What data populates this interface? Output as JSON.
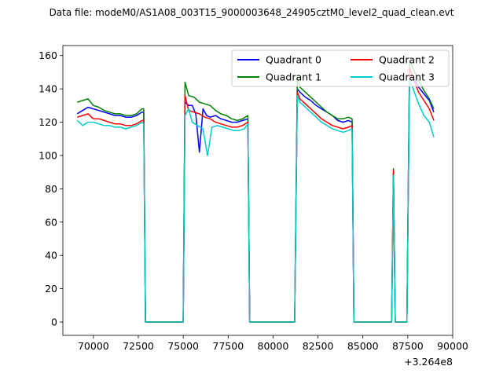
{
  "chart_data": {
    "type": "line",
    "title": "Data file: modeM0/AS1A08_003T15_9000003648_24905cztM0_level2_quad_clean.evt",
    "xlabel": "",
    "ylabel": "",
    "x_offset_label": "+3.264e8",
    "xlim": [
      68300,
      90000
    ],
    "ylim": [
      -8,
      166
    ],
    "xticks": [
      70000,
      72500,
      75000,
      77500,
      80000,
      82500,
      85000,
      87500,
      90000
    ],
    "xtick_labels": [
      "70000",
      "72500",
      "75000",
      "77500",
      "80000",
      "82500",
      "85000",
      "87500",
      "90000"
    ],
    "yticks": [
      0,
      20,
      40,
      60,
      80,
      100,
      120,
      140,
      160
    ],
    "ytick_labels": [
      "0",
      "20",
      "40",
      "60",
      "80",
      "100",
      "120",
      "140",
      "160"
    ],
    "grid": false,
    "legend": {
      "placement": "top-right",
      "columns": 2
    },
    "series": [
      {
        "name": "Quadrant 0",
        "color": "#0000ff",
        "points": [
          [
            69100,
            125
          ],
          [
            69400,
            127
          ],
          [
            69700,
            129
          ],
          [
            70000,
            128
          ],
          [
            70300,
            127
          ],
          [
            70600,
            126
          ],
          [
            70900,
            125
          ],
          [
            71200,
            124
          ],
          [
            71500,
            124
          ],
          [
            71800,
            123
          ],
          [
            72100,
            123
          ],
          [
            72400,
            124
          ],
          [
            72700,
            126
          ],
          [
            72800,
            126
          ],
          [
            72900,
            0
          ],
          [
            75000,
            0
          ],
          [
            75100,
            132
          ],
          [
            75300,
            130
          ],
          [
            75500,
            130
          ],
          [
            75700,
            125
          ],
          [
            75900,
            102
          ],
          [
            76100,
            128
          ],
          [
            76300,
            124
          ],
          [
            76500,
            123
          ],
          [
            76800,
            124
          ],
          [
            77100,
            122
          ],
          [
            77400,
            121
          ],
          [
            77700,
            120
          ],
          [
            78000,
            120
          ],
          [
            78300,
            121
          ],
          [
            78600,
            122
          ],
          [
            78700,
            0
          ],
          [
            81200,
            0
          ],
          [
            81350,
            140
          ],
          [
            81500,
            138
          ],
          [
            81800,
            135
          ],
          [
            82100,
            133
          ],
          [
            82400,
            130
          ],
          [
            82700,
            128
          ],
          [
            83000,
            126
          ],
          [
            83300,
            124
          ],
          [
            83600,
            121
          ],
          [
            83900,
            120
          ],
          [
            84200,
            121
          ],
          [
            84400,
            120
          ],
          [
            84500,
            0
          ],
          [
            86600,
            0
          ],
          [
            86700,
            90
          ],
          [
            86800,
            0
          ],
          [
            87450,
            0
          ],
          [
            87600,
            148
          ],
          [
            87800,
            147
          ],
          [
            88100,
            141
          ],
          [
            88400,
            137
          ],
          [
            88700,
            133
          ],
          [
            88950,
            126
          ]
        ]
      },
      {
        "name": "Quadrant 1",
        "color": "#008000",
        "points": [
          [
            69100,
            132
          ],
          [
            69400,
            133
          ],
          [
            69700,
            134
          ],
          [
            70000,
            130
          ],
          [
            70300,
            129
          ],
          [
            70600,
            127
          ],
          [
            70900,
            126
          ],
          [
            71200,
            125
          ],
          [
            71500,
            125
          ],
          [
            71800,
            124
          ],
          [
            72100,
            124
          ],
          [
            72400,
            125
          ],
          [
            72700,
            128
          ],
          [
            72800,
            128
          ],
          [
            72900,
            0
          ],
          [
            75000,
            0
          ],
          [
            75100,
            144
          ],
          [
            75300,
            136
          ],
          [
            75600,
            135
          ],
          [
            75900,
            132
          ],
          [
            76200,
            131
          ],
          [
            76500,
            130
          ],
          [
            76800,
            127
          ],
          [
            77100,
            125
          ],
          [
            77400,
            124
          ],
          [
            77700,
            122
          ],
          [
            78000,
            121
          ],
          [
            78300,
            122
          ],
          [
            78600,
            124
          ],
          [
            78700,
            0
          ],
          [
            81200,
            0
          ],
          [
            81350,
            147
          ],
          [
            81500,
            141
          ],
          [
            81800,
            138
          ],
          [
            82100,
            135
          ],
          [
            82400,
            132
          ],
          [
            82700,
            129
          ],
          [
            83000,
            126
          ],
          [
            83300,
            124
          ],
          [
            83600,
            122
          ],
          [
            83900,
            122
          ],
          [
            84200,
            123
          ],
          [
            84400,
            122
          ],
          [
            84500,
            0
          ],
          [
            86600,
            0
          ],
          [
            86700,
            92
          ],
          [
            86800,
            0
          ],
          [
            87450,
            0
          ],
          [
            87600,
            157
          ],
          [
            87800,
            152
          ],
          [
            88100,
            145
          ],
          [
            88400,
            139
          ],
          [
            88700,
            134
          ],
          [
            88950,
            128
          ]
        ]
      },
      {
        "name": "Quadrant 2",
        "color": "#ff0000",
        "points": [
          [
            69100,
            123
          ],
          [
            69400,
            124
          ],
          [
            69700,
            125
          ],
          [
            70000,
            122
          ],
          [
            70300,
            122
          ],
          [
            70600,
            121
          ],
          [
            70900,
            120
          ],
          [
            71200,
            119
          ],
          [
            71500,
            119
          ],
          [
            71800,
            118
          ],
          [
            72100,
            118
          ],
          [
            72400,
            119
          ],
          [
            72700,
            121
          ],
          [
            72800,
            121
          ],
          [
            72900,
            0
          ],
          [
            75000,
            0
          ],
          [
            75100,
            136
          ],
          [
            75300,
            127
          ],
          [
            75600,
            126
          ],
          [
            75900,
            125
          ],
          [
            76200,
            123
          ],
          [
            76500,
            122
          ],
          [
            76800,
            120
          ],
          [
            77100,
            119
          ],
          [
            77400,
            118
          ],
          [
            77700,
            117
          ],
          [
            78000,
            117
          ],
          [
            78300,
            118
          ],
          [
            78600,
            120
          ],
          [
            78700,
            0
          ],
          [
            81200,
            0
          ],
          [
            81350,
            138
          ],
          [
            81500,
            134
          ],
          [
            81800,
            131
          ],
          [
            82100,
            128
          ],
          [
            82400,
            125
          ],
          [
            82700,
            122
          ],
          [
            83000,
            120
          ],
          [
            83300,
            118
          ],
          [
            83600,
            117
          ],
          [
            83900,
            116
          ],
          [
            84200,
            117
          ],
          [
            84400,
            118
          ],
          [
            84500,
            0
          ],
          [
            86600,
            0
          ],
          [
            86700,
            91
          ],
          [
            86800,
            0
          ],
          [
            87450,
            0
          ],
          [
            87600,
            153
          ],
          [
            87800,
            146
          ],
          [
            88100,
            138
          ],
          [
            88400,
            133
          ],
          [
            88700,
            128
          ],
          [
            88950,
            121
          ]
        ]
      },
      {
        "name": "Quadrant 3",
        "color": "#00cccc",
        "points": [
          [
            69100,
            121
          ],
          [
            69400,
            118
          ],
          [
            69700,
            120
          ],
          [
            70000,
            120
          ],
          [
            70300,
            119
          ],
          [
            70600,
            118
          ],
          [
            70900,
            118
          ],
          [
            71200,
            117
          ],
          [
            71500,
            117
          ],
          [
            71800,
            116
          ],
          [
            72100,
            117
          ],
          [
            72400,
            118
          ],
          [
            72700,
            120
          ],
          [
            72800,
            119
          ],
          [
            72900,
            0
          ],
          [
            75000,
            0
          ],
          [
            75100,
            124
          ],
          [
            75300,
            128
          ],
          [
            75500,
            120
          ],
          [
            75800,
            118
          ],
          [
            76100,
            116
          ],
          [
            76350,
            100
          ],
          [
            76600,
            117
          ],
          [
            76900,
            118
          ],
          [
            77200,
            117
          ],
          [
            77500,
            116
          ],
          [
            77800,
            115
          ],
          [
            78100,
            115
          ],
          [
            78400,
            116
          ],
          [
            78600,
            119
          ],
          [
            78700,
            0
          ],
          [
            81200,
            0
          ],
          [
            81350,
            136
          ],
          [
            81500,
            132
          ],
          [
            81800,
            129
          ],
          [
            82100,
            126
          ],
          [
            82400,
            123
          ],
          [
            82700,
            120
          ],
          [
            83000,
            118
          ],
          [
            83300,
            116
          ],
          [
            83600,
            115
          ],
          [
            83900,
            114
          ],
          [
            84200,
            115
          ],
          [
            84400,
            116
          ],
          [
            84500,
            0
          ],
          [
            86600,
            0
          ],
          [
            86700,
            88
          ],
          [
            86800,
            0
          ],
          [
            87450,
            0
          ],
          [
            87600,
            146
          ],
          [
            87800,
            140
          ],
          [
            88100,
            131
          ],
          [
            88400,
            124
          ],
          [
            88700,
            120
          ],
          [
            88950,
            111
          ]
        ]
      }
    ]
  }
}
